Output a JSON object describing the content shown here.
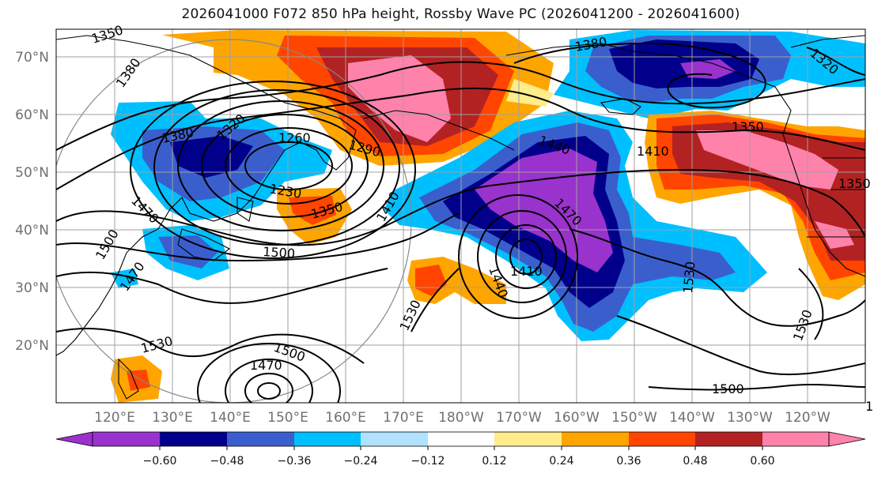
{
  "title": "2026041000 F072 850 hPa height, Rossby Wave PC (2026041200 - 2026041600)",
  "colors": {
    "fill_palette": [
      "#9a32cd",
      "#00008b",
      "#3a5fcd",
      "#00bfff",
      "#b0e2ff",
      "#ffffff",
      "#ffec8b",
      "#ffa500",
      "#ff4500",
      "#b22222",
      "#ff82ab"
    ],
    "contour": "#000000",
    "grid": "#a0a0a0",
    "coast": "#000000"
  },
  "map": {
    "lat_labels": [
      "70°N",
      "60°N",
      "50°N",
      "40°N",
      "30°N",
      "20°N"
    ],
    "lon_labels": [
      "120°E",
      "130°E",
      "140°E",
      "150°E",
      "160°E",
      "170°E",
      "180°W",
      "170°W",
      "160°W",
      "150°W",
      "140°W",
      "130°W",
      "120°W"
    ],
    "contour_labels": [
      "1350",
      "1380",
      "1380",
      "1380",
      "1320",
      "1350",
      "1320",
      "1260",
      "1290",
      "1230",
      "1350",
      "1410",
      "1440",
      "1410",
      "1350",
      "1470",
      "1470",
      "1410",
      "1440",
      "1500",
      "1500",
      "1470",
      "1530",
      "1530",
      "1530",
      "1530",
      "1530",
      "1500",
      "1470",
      "1500"
    ]
  },
  "colorbar": {
    "ticks": [
      "−0.60",
      "−0.48",
      "−0.36",
      "−0.24",
      "−0.12",
      "0.12",
      "0.24",
      "0.36",
      "0.48",
      "0.60"
    ]
  }
}
